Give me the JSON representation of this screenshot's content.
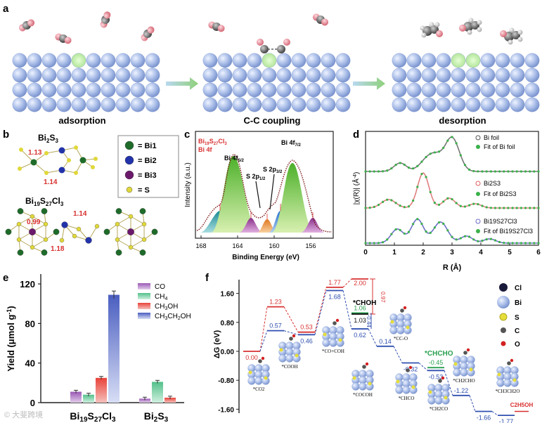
{
  "panels": {
    "a": {
      "letter": "a",
      "captions": [
        "adsorption",
        "C-C coupling",
        "desorption"
      ]
    },
    "b": {
      "letter": "b",
      "bi2s3_label": "Bi",
      "bi2s3_sub1": "2",
      "bi2s3_mid": "S",
      "bi2s3_sub2": "3",
      "bi2s3_dist1": "1.13",
      "bi2s3_dist2": "1.14",
      "bicl_label": "Bi",
      "bicl_sub1": "19",
      "bicl_s": "S",
      "bicl_sub2": "27",
      "bicl_cl": "Cl",
      "bicl_sub3": "3",
      "bicl_dist1": "0.99",
      "bicl_dist2": "1.14",
      "bicl_dist3": "1.18",
      "legend": [
        {
          "label": "= Bi1",
          "color": "#1f6b2a"
        },
        {
          "label": "= Bi2",
          "color": "#2233aa"
        },
        {
          "label": "= Bi3",
          "color": "#6b1a6b"
        },
        {
          "label": "= S",
          "color": "#e0d83a"
        }
      ]
    },
    "c": {
      "letter": "c",
      "title1": "Bi",
      "title1_sub": "19",
      "title1_s": "S",
      "title1_sub2": "27",
      "title1_cl": "Cl",
      "title1_sub3": "3",
      "title2": "Bi 4f",
      "peak_52": "Bi 4f",
      "peak_52_sub": "5/2",
      "peak_72": "Bi 4f",
      "peak_72_sub": "7/2",
      "s_12": "S 2p",
      "s_12_sub": "1/2",
      "s_32": "S 2p",
      "s_32_sub": "3/2",
      "ylabel": "Intensity (a.u.)",
      "xlabel": "Binding Energy (eV)",
      "xticks": [
        "168",
        "164",
        "160",
        "156"
      ]
    },
    "d": {
      "letter": "d",
      "ylabel": "|χ(R)| (Å",
      "ylabel_sup": "-4",
      "ylabel_end": ")",
      "xlabel": "R (Å)",
      "xticks": [
        "0",
        "1",
        "2",
        "3",
        "4",
        "5",
        "6"
      ],
      "legend": [
        [
          "Bi foil",
          "Fit of Bi foil"
        ],
        [
          "Bi2S3",
          "Fit of Bi2S3"
        ],
        [
          "Bi19S27Cl3",
          "Fit of Bi19S27Cl3"
        ]
      ]
    },
    "e": {
      "letter": "e",
      "ylabel": "Yield (μmol g",
      "ylabel_sup": "-1",
      "ylabel_end": ")",
      "yticks": [
        "0",
        "40",
        "80",
        "120"
      ],
      "x1_bi": "Bi",
      "x1_sub1": "19",
      "x1_s": "S",
      "x1_sub2": "27",
      "x1_cl": "Cl",
      "x1_sub3": "3",
      "x2_bi": "Bi",
      "x2_sub1": "2",
      "x2_s": "S",
      "x2_sub2": "3",
      "legend": [
        {
          "label": "CO",
          "color": "#9b59b6"
        },
        {
          "label": "CH",
          "sub": "4",
          "color": "#52c08a"
        },
        {
          "label": "CH",
          "sub": "3",
          "tail": "OH",
          "color": "#e8433a"
        },
        {
          "label": "CH",
          "sub": "3",
          "tail": "CH",
          "sub2": "2",
          "tail2": "OH",
          "color": "#4a5ec0"
        }
      ]
    },
    "f": {
      "letter": "f",
      "ylabel": "ΔG (eV)",
      "yticks": [
        "1.60",
        "0.80",
        "0.00",
        "-0.80",
        "-1.60"
      ],
      "levels_red": [
        "0.00",
        "1.23",
        "0.53",
        "1.77",
        "2.00"
      ],
      "levels_blue": [
        "0.57",
        "0.46",
        "1.68",
        "0.62",
        "0.14",
        "-0.32",
        "-0.53",
        "-1.22",
        "-1.66",
        "-1.77"
      ],
      "levels_green": [
        "1.06",
        "-0.45"
      ],
      "levels_black": [
        "1.03"
      ],
      "delta_red": "0.97",
      "delta_blue": "-0.44",
      "chohlabel": "*CHOH",
      "chcholabel": "*CHCHO",
      "species": [
        "*CO2",
        "*COOH",
        "*CO+COH",
        "*COCOH",
        "*CC-O",
        "*CHCO",
        "*CH2CO",
        "*CH2CHO",
        "*CH3CH2O"
      ],
      "product": "C2H5OH",
      "legend": [
        {
          "label": "Cl",
          "color": "#1a1a3a"
        },
        {
          "label": "Bi",
          "color": "#b8c4d6"
        },
        {
          "label": "S",
          "color": "#e6dd3a"
        },
        {
          "label": "C",
          "color": "#555555"
        },
        {
          "label": "O",
          "color": "#d42020"
        }
      ]
    },
    "watermark": "© 大斐跨境"
  },
  "chart_data": {
    "type": "bar",
    "title": "",
    "ylabel": "Yield (μmol g-1)",
    "ylim": [
      0,
      130
    ],
    "categories": [
      "Bi19S27Cl3",
      "Bi2S3"
    ],
    "series": [
      {
        "name": "CO",
        "values": [
          11,
          4
        ]
      },
      {
        "name": "CH4",
        "values": [
          8,
          21
        ]
      },
      {
        "name": "CH3OH",
        "values": [
          25,
          5
        ]
      },
      {
        "name": "CH3CH2OH",
        "values": [
          109,
          0
        ]
      }
    ]
  }
}
